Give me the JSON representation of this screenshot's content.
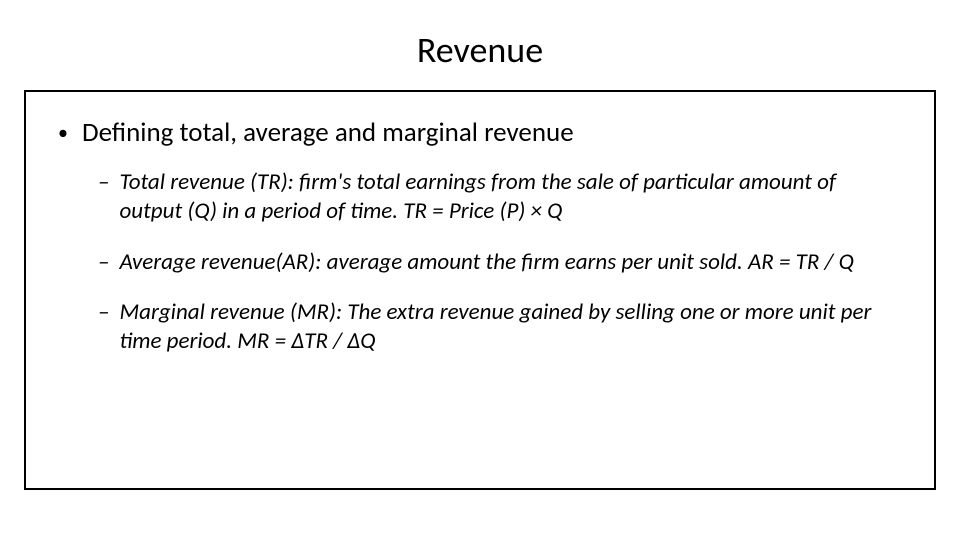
{
  "slide": {
    "title": "Revenue",
    "main_bullet": "Defining total, average and marginal  revenue",
    "sub_bullets": [
      "Total revenue (TR): firm's total earnings from the sale of particular amount of output (Q) in a period of time. TR = Price (P) × Q",
      "Average revenue(AR): average amount the firm earns per unit sold. AR = TR / Q",
      "Marginal revenue (MR): The extra revenue gained by selling one or more unit per time period. MR = ∆TR / ∆Q"
    ]
  },
  "styling": {
    "background_color": "#ffffff",
    "border_color": "#000000",
    "border_width": 2.5,
    "text_color": "#000000",
    "title_fontsize": 36,
    "main_bullet_fontsize": 27,
    "sub_bullet_fontsize": 23,
    "sub_bullet_style": "italic",
    "font_family": "Calibri"
  }
}
